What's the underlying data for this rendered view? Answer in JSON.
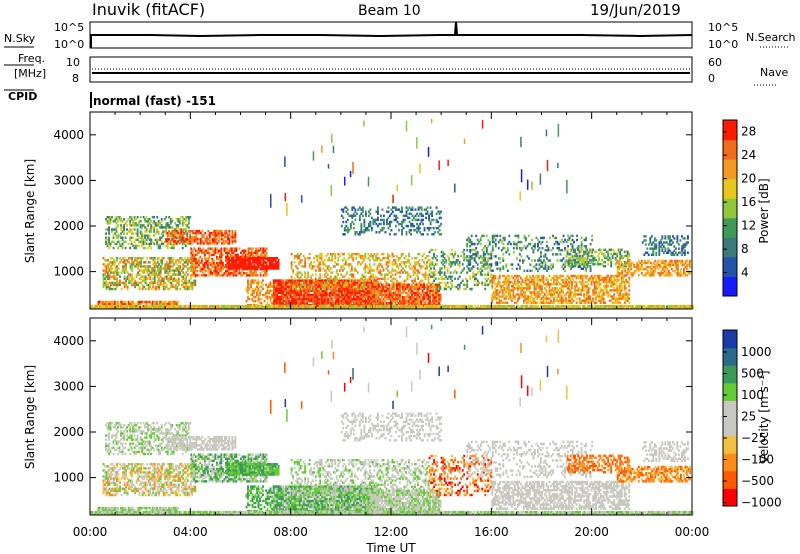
{
  "header": {
    "station": "Inuvik (fitACF)",
    "beam": "Beam 10",
    "date": "19/Jun/2019"
  },
  "strip_panels": {
    "nsky_label": "N.Sky",
    "nsky_ticks": [
      "10^5",
      "10^0"
    ],
    "nsearch_label": "N.Search",
    "nsearch_ticks": [
      "10^5",
      "10^0"
    ],
    "freq_label_line1": "Freq.",
    "freq_label_line2": "[MHz]",
    "freq_ticks": [
      "10",
      "8"
    ],
    "nave_label": "Nave",
    "nave_ticks": [
      "60",
      "0"
    ],
    "cpid_label": "CPID",
    "cpid_value": "normal (fast) -151"
  },
  "colors": {
    "power_scale": [
      "#1a1aff",
      "#2255aa",
      "#3b7a7a",
      "#3f9a55",
      "#8ec93b",
      "#e8c71a",
      "#f29a22",
      "#f26a1b",
      "#ff1a00"
    ],
    "velocity_scale": [
      "#ff0000",
      "#ff5a00",
      "#ff8c1a",
      "#f2c040",
      "#c8c8c0",
      "#c8c8c0",
      "#66cc33",
      "#3a9a5a",
      "#2a6a8a",
      "#1a3aaa"
    ],
    "background_band": "#008000"
  },
  "chart_data": [
    {
      "type": "heatmap",
      "name": "power",
      "ylabel": "Slant Range [km]",
      "xlabel": "",
      "x_ticks": [
        "00:00",
        "04:00",
        "08:00",
        "12:00",
        "16:00",
        "20:00",
        "00:00"
      ],
      "y_ticks": [
        "1000",
        "2000",
        "3000",
        "4000"
      ],
      "ylim": [
        180,
        4500
      ],
      "xlim_hours": [
        0,
        24
      ],
      "colorbar_label": "Power [dB]",
      "colorbar_ticks": [
        "4",
        "8",
        "12",
        "16",
        "20",
        "24",
        "28"
      ],
      "colorbar_range": [
        0,
        30
      ]
    },
    {
      "type": "heatmap",
      "name": "velocity",
      "ylabel": "Slant Range [km]",
      "xlabel": "Time UT",
      "x_ticks": [
        "00:00",
        "04:00",
        "08:00",
        "12:00",
        "16:00",
        "20:00",
        "00:00"
      ],
      "y_ticks": [
        "1000",
        "2000",
        "3000",
        "4000"
      ],
      "ylim": [
        180,
        4500
      ],
      "xlim_hours": [
        0,
        24
      ],
      "colorbar_label": "Velocity [m s⁻¹]",
      "colorbar_ticks": [
        "1000",
        "500",
        "100",
        "25",
        "−25",
        "−100",
        "−500",
        "−1000"
      ]
    }
  ]
}
